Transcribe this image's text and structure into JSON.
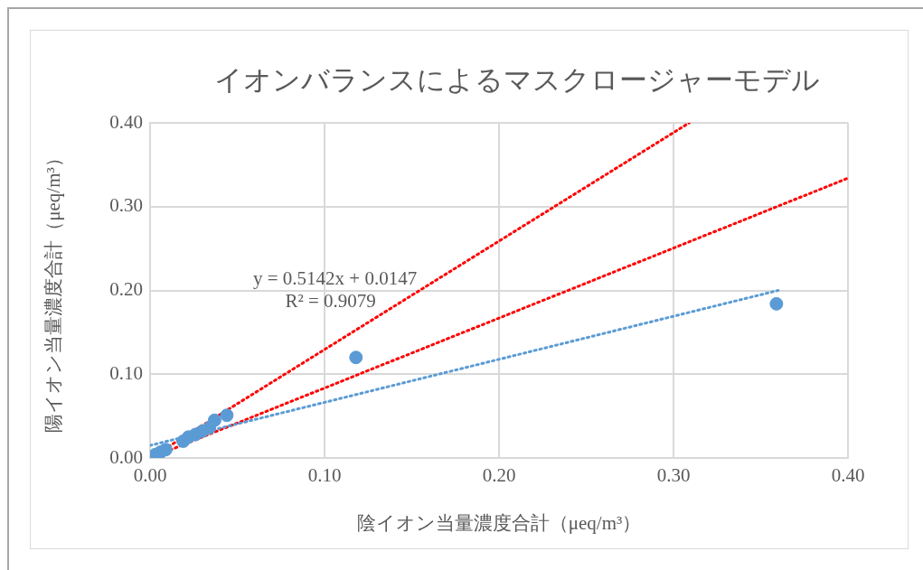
{
  "chart_data": {
    "type": "scatter",
    "title": "イオンバランスによるマスクロージャーモデル",
    "xlabel": "陰イオン当量濃度合計（μeq/m³）",
    "ylabel": "陽イオン当量濃度合計（μeq/m³）",
    "xlim": [
      0,
      0.4
    ],
    "xticks": [
      {
        "value": 0,
        "label": "0.00"
      },
      {
        "value": 0.1,
        "label": "0.10"
      },
      {
        "value": 0.2,
        "label": "0.20"
      },
      {
        "value": 0.3,
        "label": "0.30"
      },
      {
        "value": 0.4,
        "label": "0.40"
      }
    ],
    "ylim": [
      0,
      0.4
    ],
    "yticks": [
      {
        "value": 0,
        "label": "0.00"
      },
      {
        "value": 0.1,
        "label": "0.10"
      },
      {
        "value": 0.2,
        "label": "0.20"
      },
      {
        "value": 0.3,
        "label": "0.30"
      },
      {
        "value": 0.4,
        "label": "0.40"
      }
    ],
    "grid": true,
    "legend": false,
    "series": [
      {
        "color": "#5b9bd5",
        "marker": "circle",
        "x": [
          0.003,
          0.006,
          0.009,
          0.019,
          0.022,
          0.026,
          0.03,
          0.034,
          0.037,
          0.044,
          0.118,
          0.359
        ],
        "values": [
          0.004,
          0.007,
          0.01,
          0.02,
          0.025,
          0.028,
          0.032,
          0.036,
          0.045,
          0.051,
          0.12,
          0.184
        ]
      },
      {
        "type": "line",
        "color": "#5b9bd5",
        "marker": "none",
        "line_style": "dotted",
        "x": [
          0,
          0.36
        ],
        "values": [
          0.015,
          0.2
        ]
      },
      {
        "type": "line",
        "color": "#ff0000",
        "marker": "none",
        "line_style": "dotted",
        "x": [
          0,
          0.309
        ],
        "values": [
          0,
          0.4
        ]
      },
      {
        "type": "line",
        "color": "#ff0000",
        "marker": "none",
        "line_style": "dotted",
        "x": [
          0,
          0.4
        ],
        "values": [
          0,
          0.334
        ]
      }
    ],
    "annotations": [
      "y = 0.5142x + 0.0147",
      "R² = 0.9079"
    ]
  }
}
